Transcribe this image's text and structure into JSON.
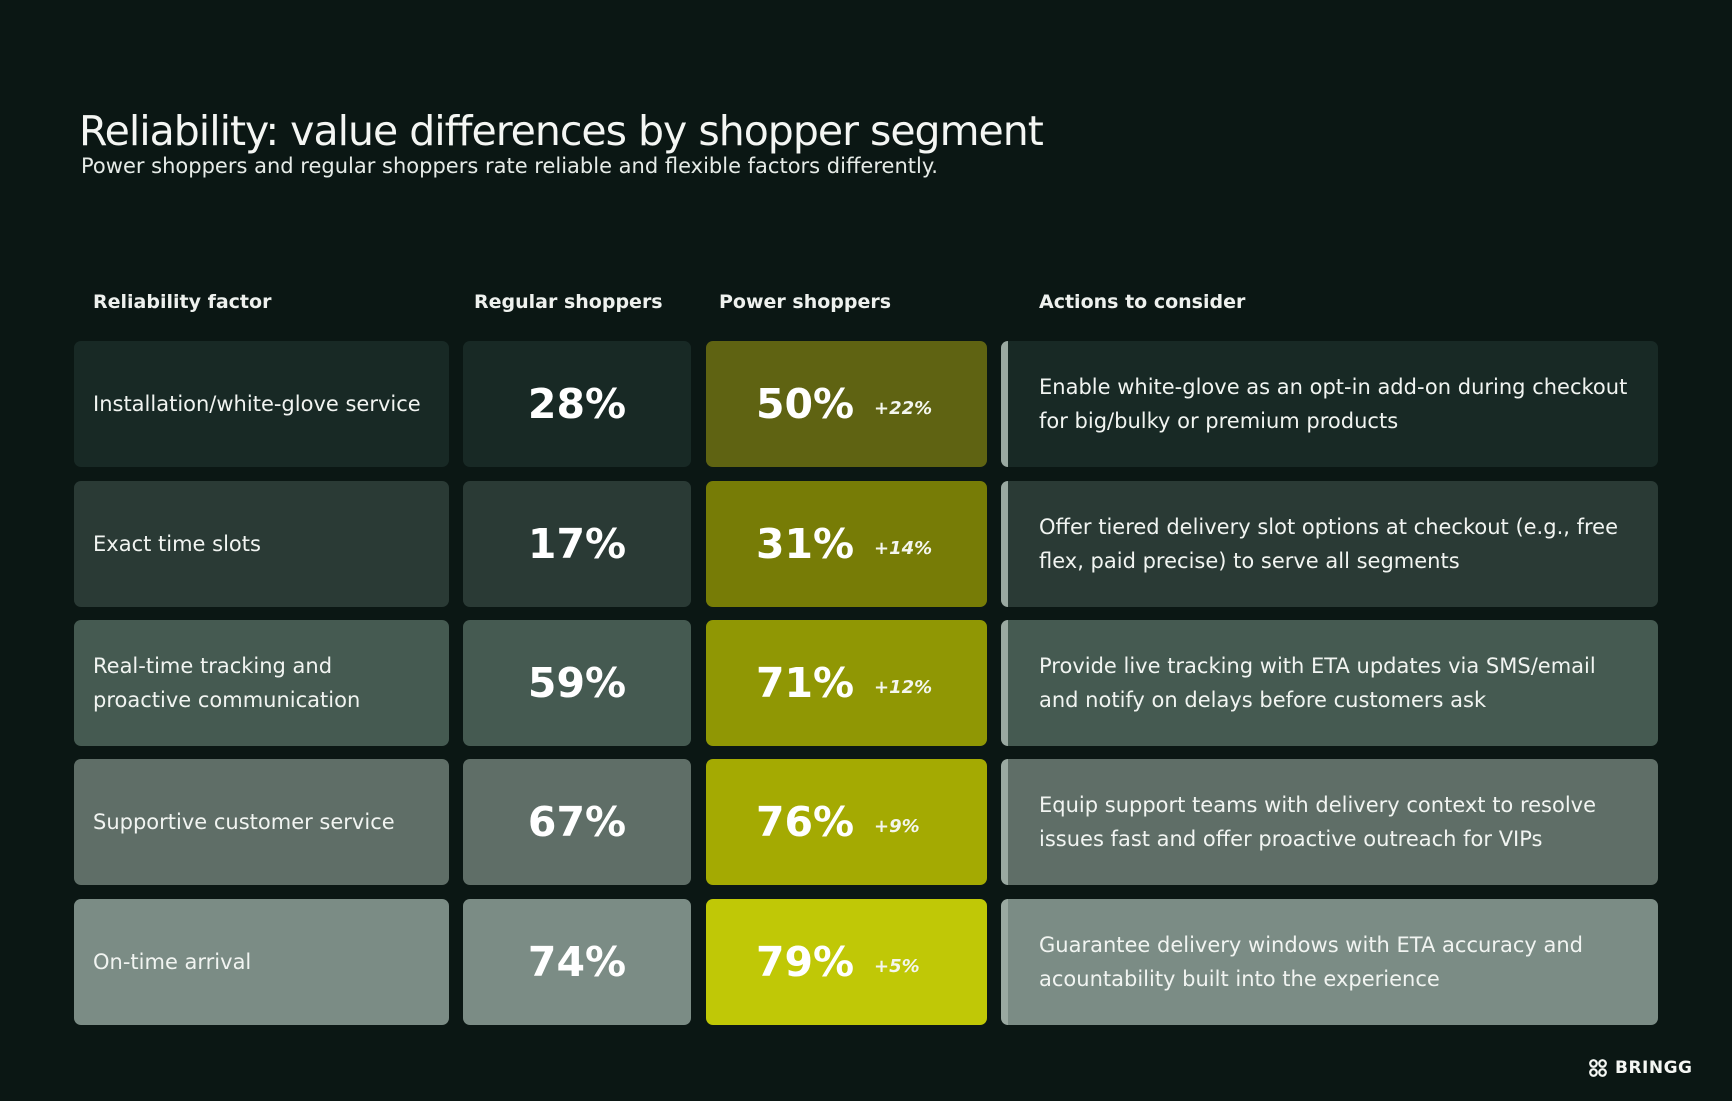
{
  "header": {
    "title": "Reliability: value differences by shopper segment",
    "subtitle": "Power shoppers and regular shoppers rate reliable and flexible factors differently."
  },
  "columns": {
    "factor": "Reliability factor",
    "regular": "Regular shoppers",
    "power": "Power shoppers",
    "actions": "Actions to consider"
  },
  "rows": [
    {
      "factor": "Installation/white-glove service",
      "regular": "28%",
      "power": "50%",
      "diff": "+22%",
      "action": "Enable white-glove as an opt-in add-on during checkout for big/bulky or premium products",
      "row_color": "#182925",
      "power_color": "#5f6312"
    },
    {
      "factor": "Exact time slots",
      "regular": "17%",
      "power": "31%",
      "diff": "+14%",
      "action": "Offer tiered delivery slot options at checkout (e.g., free flex, paid precise) to serve all segments",
      "row_color": "#2a3a35",
      "power_color": "#777c06"
    },
    {
      "factor": "Real-time tracking and proactive communication",
      "regular": "59%",
      "power": "71%",
      "diff": "+12%",
      "action": "Provide live tracking with ETA updates via SMS/email and notify on delays before customers ask",
      "row_color": "#455a51",
      "power_color": "#909704"
    },
    {
      "factor": "Supportive customer service",
      "regular": "67%",
      "power": "76%",
      "diff": "+9%",
      "action": "Equip support teams with delivery context to resolve issues fast and offer proactive outreach for VIPs",
      "row_color": "#5f6e67",
      "power_color": "#a4aa02"
    },
    {
      "factor": "On-time arrival",
      "regular": "74%",
      "power": "79%",
      "diff": "+5%",
      "action": "Guarantee delivery windows with ETA accuracy and acountability built into the experience",
      "row_color": "#7b8c85",
      "power_color": "#c0c806"
    }
  ],
  "brand": {
    "name": "BRINGG",
    "icon": "bringg-logo-icon"
  }
}
